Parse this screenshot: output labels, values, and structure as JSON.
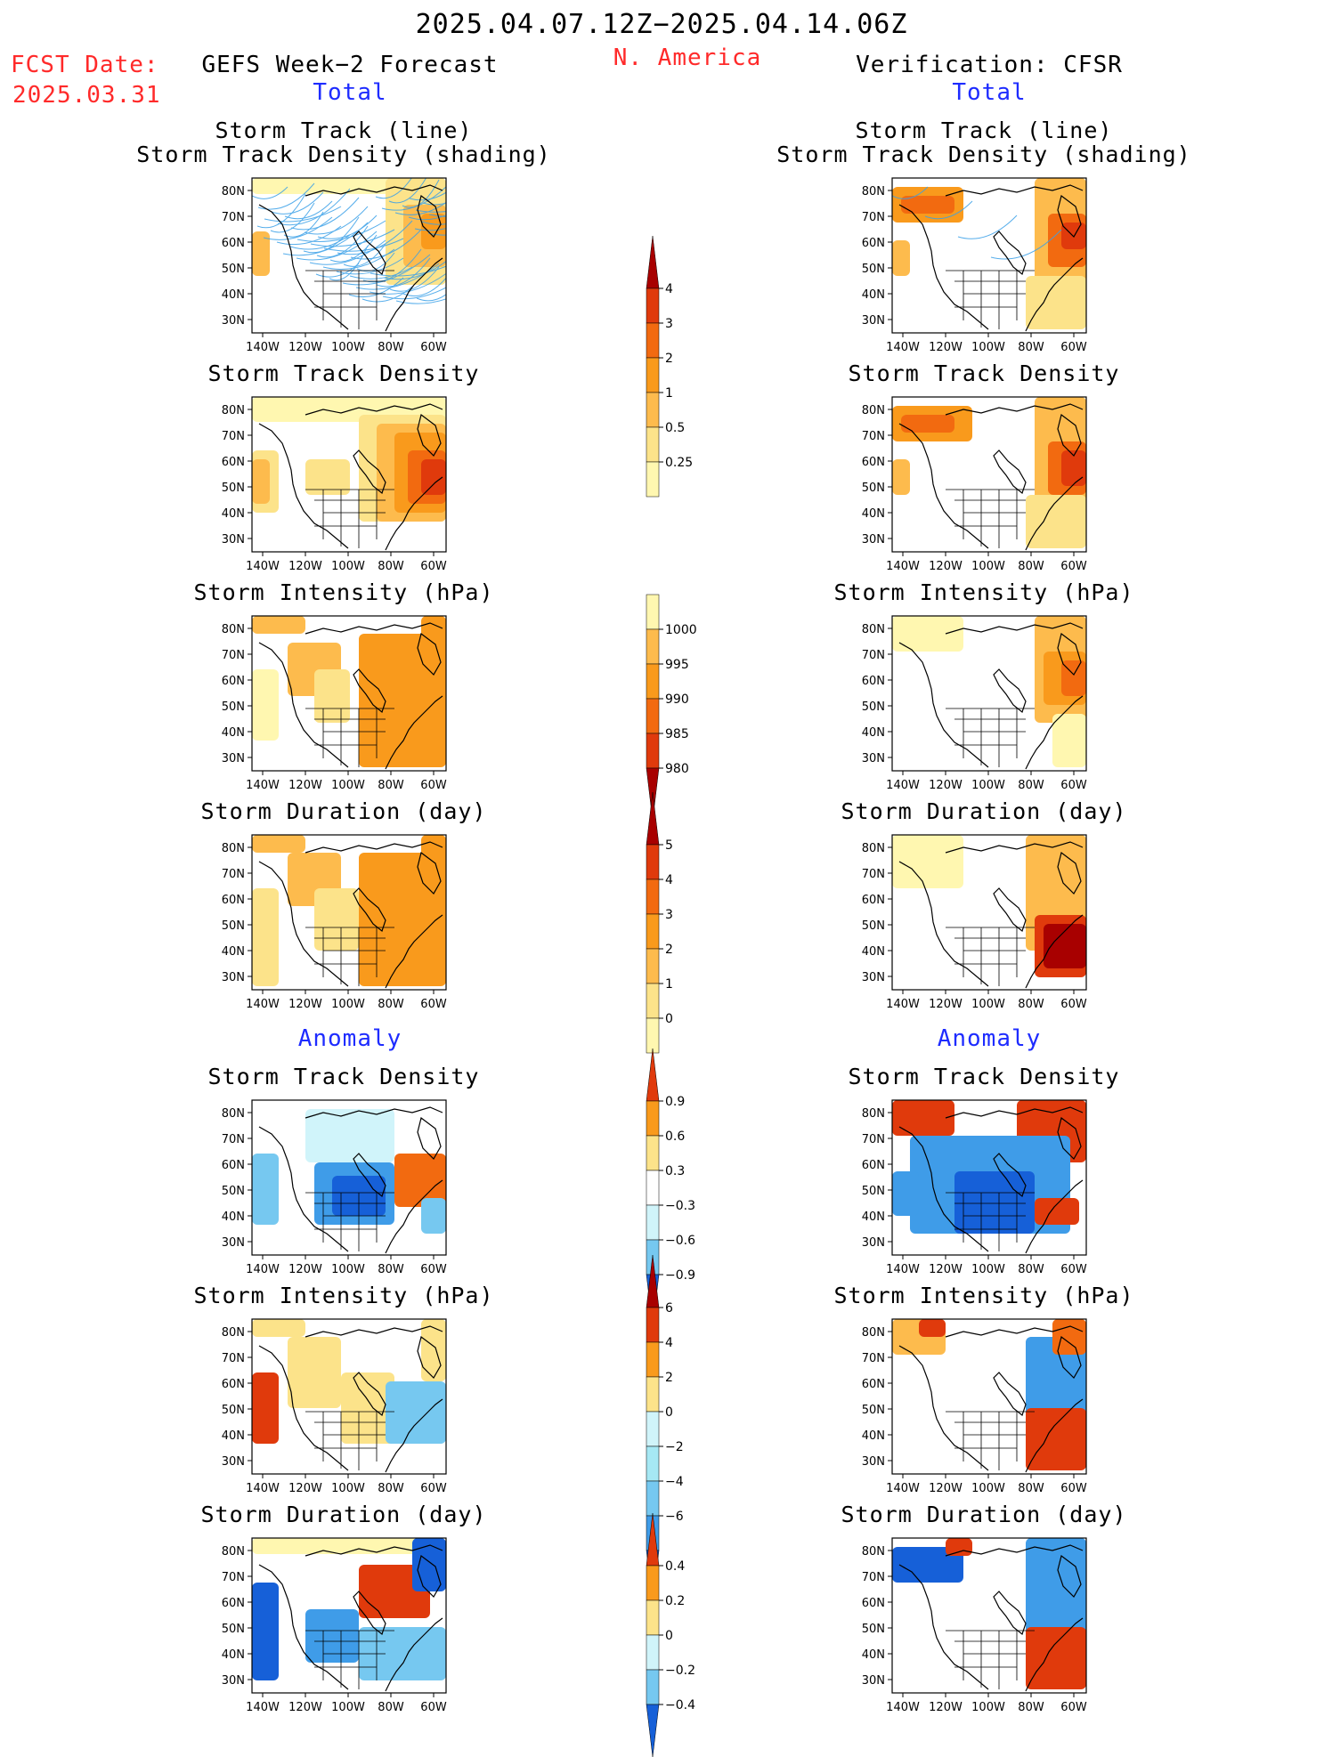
{
  "header": {
    "period": "2025.04.07.12Z−2025.04.14.06Z",
    "fcst_label": "FCST Date:",
    "fcst_date": "2025.03.31",
    "region": "N. America",
    "left_title": "GEFS Week−2 Forecast",
    "right_title": "Verification: CFSR",
    "total_label": "Total",
    "anomaly_label": "Anomaly"
  },
  "panel_titles": {
    "track_line": "Storm Track (line)",
    "track_shading": "Storm Track Density (shading)",
    "density": "Storm Track Density",
    "intensity": "Storm Intensity (hPa)",
    "duration": "Storm Duration (day)"
  },
  "axes": {
    "lat_labels": [
      "80N",
      "70N",
      "60N",
      "50N",
      "40N",
      "30N"
    ],
    "lon_labels": [
      "140W",
      "120W",
      "100W",
      "80W",
      "60W"
    ]
  },
  "colorbars": {
    "total_density": {
      "labels": [
        "4",
        "3",
        "2",
        "1",
        "0.5",
        "0.25"
      ]
    },
    "total_intensity": {
      "labels": [
        "1000",
        "995",
        "990",
        "985",
        "980"
      ]
    },
    "total_duration": {
      "labels": [
        "5",
        "4",
        "3",
        "2",
        "1",
        "0"
      ]
    },
    "anom_density": {
      "labels": [
        "0.9",
        "0.6",
        "0.3",
        "−0.3",
        "−0.6",
        "−0.9"
      ]
    },
    "anom_intensity": {
      "labels": [
        "6",
        "4",
        "2",
        "0",
        "−2",
        "−4",
        "−6"
      ]
    },
    "anom_duration": {
      "labels": [
        "0.4",
        "0.2",
        "0",
        "−0.2",
        "−0.4"
      ]
    }
  },
  "colors": {
    "title_red": "#ff2a2a",
    "title_blue": "#1e2cff",
    "track_line": "#3aa0e8",
    "warm": [
      "#fff7b0",
      "#fce38a",
      "#fdbb4d",
      "#f99a1c",
      "#f26a10",
      "#e03a0c",
      "#a80000"
    ],
    "cool": [
      "#d0f4fa",
      "#a6e8f4",
      "#76c8f0",
      "#3f9ce8",
      "#1660d8"
    ]
  }
}
